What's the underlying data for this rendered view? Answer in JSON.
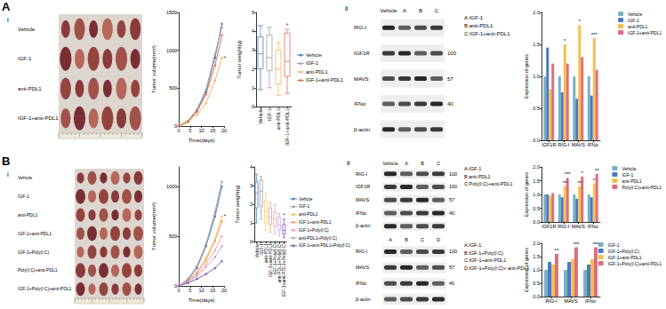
{
  "panels": [
    {
      "label": "A",
      "sub": [
        "i",
        "ii"
      ],
      "photo_rows": [
        "Vehicle",
        "IGF-1",
        "anti-PDL1",
        "IGF-1+anti-PDL1"
      ],
      "blots": [
        {
          "lanes": [
            "Vehicle",
            "A",
            "B",
            "C"
          ],
          "rows": [
            {
              "label": "RIG-I"
            },
            {
              "label": "IGF1R",
              "marker": 100
            },
            {
              "label": "MAVS",
              "marker": 57
            },
            {
              "label": "IFNα",
              "marker": 40
            },
            {
              "label": "β-actin"
            }
          ],
          "key": [
            "A:IGF-1",
            "B:anti-PDL1",
            "C:IGF-1+anti-PDL1"
          ]
        }
      ]
    },
    {
      "label": "B",
      "sub": [
        "i",
        "ii"
      ],
      "photo_rows": [
        "Vehicle",
        "IGF-1",
        "anti-PDL1",
        "IGF-1+anti-PDL1",
        "IGF-1+Poly(I:C)",
        "Poly(I:C)+anti-PDL1",
        "IGF-1+Poly(I:C)+anti-PDL1"
      ],
      "blots": [
        {
          "lanes": [
            "Vehicle",
            "A",
            "B",
            "C"
          ],
          "rows": [
            {
              "label": "RIG-I",
              "marker": 100
            },
            {
              "label": "IGF1R",
              "marker": 100
            },
            {
              "label": "MAVS",
              "marker": 57
            },
            {
              "label": "IFNα",
              "marker": 40
            },
            {
              "label": "β-actin"
            }
          ],
          "key": [
            "A:IGF-1",
            "B:anti-PDL1",
            "C:Poly(I:C)+anti-PDL1"
          ]
        },
        {
          "lanes": [
            "A",
            "B",
            "C",
            "D"
          ],
          "rows": [
            {
              "label": "RIG-I",
              "marker": 100
            },
            {
              "label": "MAVS",
              "marker": 57
            },
            {
              "label": "IFNα",
              "marker": 40
            },
            {
              "label": "β-actin"
            }
          ],
          "key": [
            "A:IGF-1",
            "B:IGF-1+Poly(I:C)",
            "C:IGF-1+anti-PDL1",
            "D:IGF-1+Poly(I:C)+ anti-PDL1"
          ]
        }
      ]
    }
  ],
  "chart_data": [
    {
      "type": "line",
      "y_label": "Tumor volume(mm³)",
      "x_label": "Time(days)",
      "x": [
        0,
        4,
        8,
        12,
        16,
        19
      ],
      "xlim": [
        0,
        20
      ],
      "xticks": [
        0,
        5,
        10,
        15,
        20
      ],
      "ylim": [
        0,
        1500
      ],
      "yticks": [
        0,
        500,
        1000,
        1500
      ],
      "marker": "circle",
      "legend": "right",
      "series": [
        {
          "name": "Vehicle",
          "color": "#4f81bd",
          "values": [
            0,
            60,
            200,
            450,
            900,
            1350
          ]
        },
        {
          "name": "IGF-1",
          "color": "#9e9e9e",
          "values": [
            0,
            70,
            220,
            480,
            950,
            1300
          ]
        },
        {
          "name": "anti-PDL1",
          "color": "#f6b26b",
          "values": [
            0,
            50,
            150,
            300,
            600,
            900
          ]
        },
        {
          "name": "IGF-1+anti-PDL1",
          "color": "#e8704e",
          "values": [
            0,
            60,
            190,
            420,
            800,
            1200
          ]
        }
      ],
      "annotations": [
        {
          "series": "anti-PDL1",
          "text": "*"
        }
      ]
    },
    {
      "type": "boxplot",
      "y_label": "Tumor weight(g)",
      "categories": [
        "Vehicle",
        "IGF-1",
        "anti-PDL1",
        "IGF-1+anti-PDL1"
      ],
      "boxes": [
        [
          0.9,
          2.0,
          2.8,
          3.7,
          4.3
        ],
        [
          1.0,
          1.9,
          2.6,
          3.8,
          4.2
        ],
        [
          0.6,
          1.2,
          2.0,
          3.0,
          3.4
        ],
        [
          0.7,
          1.6,
          2.4,
          3.9,
          4.1
        ]
      ],
      "colors": [
        "#4f81bd",
        "#9e9e9e",
        "#f6b26b",
        "#e8704e"
      ],
      "ylim": [
        0,
        5
      ],
      "yticks": [
        0,
        1,
        2,
        3,
        4,
        5
      ],
      "annotations": [
        {
          "category": "IGF-1+anti-PDL1",
          "text": "*"
        }
      ]
    },
    {
      "type": "bar",
      "y_label": "Expression of genes",
      "categories": [
        "IGF1R",
        "RIG-I",
        "MAVS",
        "IFNα"
      ],
      "ylim": [
        0,
        2
      ],
      "yticks": [
        {
          "value": 0,
          "label": "0.0"
        },
        0.5,
        {
          "value": 1,
          "label": "1.0"
        },
        1.5,
        {
          "value": 2,
          "label": "2.0"
        }
      ],
      "legend": "right",
      "series": [
        {
          "name": "Vehicle",
          "color": "#7bafc4",
          "values": [
            1.0,
            1.0,
            1.0,
            1.0
          ]
        },
        {
          "name": "IGF-1",
          "color": "#4a78c2",
          "values": [
            1.45,
            0.75,
            0.65,
            0.7
          ]
        },
        {
          "name": "anti-PDL1",
          "color": "#f2c14e",
          "values": [
            0.8,
            1.5,
            1.8,
            1.6
          ]
        },
        {
          "name": "IGF-1+anti-PDL1",
          "color": "#e06c7a",
          "values": [
            1.2,
            1.2,
            1.3,
            1.1
          ]
        }
      ],
      "annotations": [
        {
          "category": "RIG-I",
          "series": "anti-PDL1",
          "text": "*"
        },
        {
          "category": "MAVS",
          "series": "anti-PDL1",
          "text": "*"
        },
        {
          "category": "IFNα",
          "series": "anti-PDL1",
          "text": "***"
        }
      ]
    },
    {
      "type": "line",
      "y_label": "Tumor volume(mm³)",
      "x_label": "Time(days)",
      "x": [
        0,
        4,
        8,
        12,
        16,
        19
      ],
      "xlim": [
        0,
        20
      ],
      "xticks": [
        0,
        5,
        10,
        15,
        20
      ],
      "ylim": [
        0,
        1200
      ],
      "yticks": [
        0,
        500,
        1000
      ],
      "marker": "circle",
      "legend": "right",
      "series": [
        {
          "name": "Vehicle",
          "color": "#4f81bd",
          "values": [
            0,
            60,
            180,
            400,
            700,
            1000
          ]
        },
        {
          "name": "IGF-1",
          "color": "#9e9e9e",
          "values": [
            0,
            70,
            200,
            420,
            750,
            1050
          ]
        },
        {
          "name": "anti-PDL1",
          "color": "#f6c26b",
          "values": [
            0,
            50,
            140,
            280,
            480,
            700
          ]
        },
        {
          "name": "IGF-1+anti-PDL1",
          "color": "#f0a35e",
          "values": [
            0,
            50,
            130,
            260,
            450,
            650
          ]
        },
        {
          "name": "IGF-1+Poly(I:C)",
          "color": "#f2a7b3",
          "values": [
            0,
            40,
            110,
            220,
            360,
            500
          ]
        },
        {
          "name": "anti-PDL1+Poly(I:C)",
          "color": "#c9a3d9",
          "values": [
            0,
            40,
            100,
            190,
            290,
            400
          ]
        },
        {
          "name": "IGF-1+anti-PDL1+Poly(I:C)",
          "color": "#7e57c2",
          "values": [
            0,
            30,
            70,
            120,
            180,
            250
          ]
        }
      ],
      "annotations": [
        {
          "series": "anti-PDL1",
          "text": "*"
        }
      ]
    },
    {
      "type": "boxplot",
      "y_label": "Tumor weight(g)",
      "categories": [
        "Vehicle",
        "IGF-1",
        "anti-PDL1",
        "IGF-1+anti-PDL1",
        "IGF-1+Poly(I:C)",
        "anti-PDL1+Poly(I:C)",
        "IGF-1+anti-PDL1+Poly(I:C)"
      ],
      "boxes": [
        [
          1.0,
          1.8,
          2.6,
          3.2,
          3.6
        ],
        [
          1.2,
          1.9,
          2.7,
          3.3,
          3.5
        ],
        [
          0.6,
          1.0,
          1.6,
          2.2,
          2.6
        ],
        [
          0.5,
          0.9,
          1.3,
          1.8,
          2.1
        ],
        [
          0.4,
          0.8,
          1.2,
          1.6,
          2.0
        ],
        [
          0.3,
          0.6,
          0.9,
          1.3,
          1.5
        ],
        [
          0.2,
          0.4,
          0.6,
          0.9,
          1.2
        ]
      ],
      "colors": [
        "#4f81bd",
        "#9e9e9e",
        "#f6c26b",
        "#f0a35e",
        "#f2a7b3",
        "#c9a3d9",
        "#7e57c2"
      ],
      "ylim": [
        0,
        4
      ],
      "yticks": [
        0,
        1,
        2,
        3,
        4
      ],
      "annotations": [
        {
          "category": "IGF-1+anti-PDL1+Poly(I:C)",
          "text": "*"
        }
      ]
    },
    {
      "type": "bar",
      "y_label": "Expression of genes",
      "categories": [
        "IGF1R",
        "RIG-I",
        "MAVS",
        "IFNα"
      ],
      "ylim": [
        0,
        2
      ],
      "yticks": [
        {
          "value": 0,
          "label": "0.0"
        },
        0.5,
        {
          "value": 1,
          "label": "1.0"
        },
        1.5,
        {
          "value": 2,
          "label": "2.0"
        }
      ],
      "legend": "right",
      "series": [
        {
          "name": "Vehicle",
          "color": "#7bafc4",
          "values": [
            1.0,
            1.0,
            1.0,
            1.0
          ]
        },
        {
          "name": "IGF-1",
          "color": "#4a78c2",
          "values": [
            1.0,
            0.9,
            0.85,
            0.9
          ]
        },
        {
          "name": "anti-PDL1",
          "color": "#f2c14e",
          "values": [
            0.95,
            1.3,
            1.3,
            1.4
          ]
        },
        {
          "name": "Poly(I:C)+anti-PDL1",
          "color": "#e06c7a",
          "values": [
            1.05,
            1.6,
            1.65,
            1.75
          ]
        }
      ],
      "annotations": [
        {
          "category": "RIG-I",
          "series": "anti-PDL1",
          "text": "**"
        },
        {
          "category": "RIG-I",
          "series": "Poly(I:C)+anti-PDL1",
          "text": "***"
        },
        {
          "category": "MAVS",
          "series": "anti-PDL1",
          "text": "**"
        },
        {
          "category": "MAVS",
          "series": "Poly(I:C)+anti-PDL1",
          "text": "*"
        },
        {
          "category": "IFNα",
          "series": "anti-PDL1",
          "text": "*"
        },
        {
          "category": "IFNα",
          "series": "Poly(I:C)+anti-PDL1",
          "text": "**"
        }
      ]
    },
    {
      "type": "bar",
      "y_label": "Expression of genes",
      "categories": [
        "RIG-I",
        "MAVS",
        "IFNα"
      ],
      "ylim": [
        0,
        2
      ],
      "yticks": [
        {
          "value": 0,
          "label": "0.0"
        },
        0.5,
        {
          "value": 1,
          "label": "1.0"
        },
        1.5,
        {
          "value": 2,
          "label": "2.0"
        }
      ],
      "legend": "right",
      "series": [
        {
          "name": "IGF-1",
          "color": "#7bafc4",
          "values": [
            1.0,
            1.0,
            1.0
          ]
        },
        {
          "name": "IGF-1+Poly(I:C)",
          "color": "#4a78c2",
          "values": [
            1.3,
            1.3,
            1.2
          ]
        },
        {
          "name": "IGF-1+anti-PDL1",
          "color": "#f2c14e",
          "values": [
            1.2,
            1.4,
            1.4
          ]
        },
        {
          "name": "IGF-1+Poly(I:C)+anti-PDL1",
          "color": "#e06c7a",
          "values": [
            1.6,
            1.85,
            1.85
          ]
        }
      ],
      "annotations": [
        {
          "category": "RIG-I",
          "series": "IGF-1+Poly(I:C)+anti-PDL1",
          "text": "**"
        },
        {
          "category": "MAVS",
          "series": "IGF-1+Poly(I:C)+anti-PDL1",
          "text": "***"
        },
        {
          "category": "IFNα",
          "series": "IGF-1+Poly(I:C)+anti-PDL1",
          "text": "***"
        }
      ]
    }
  ]
}
